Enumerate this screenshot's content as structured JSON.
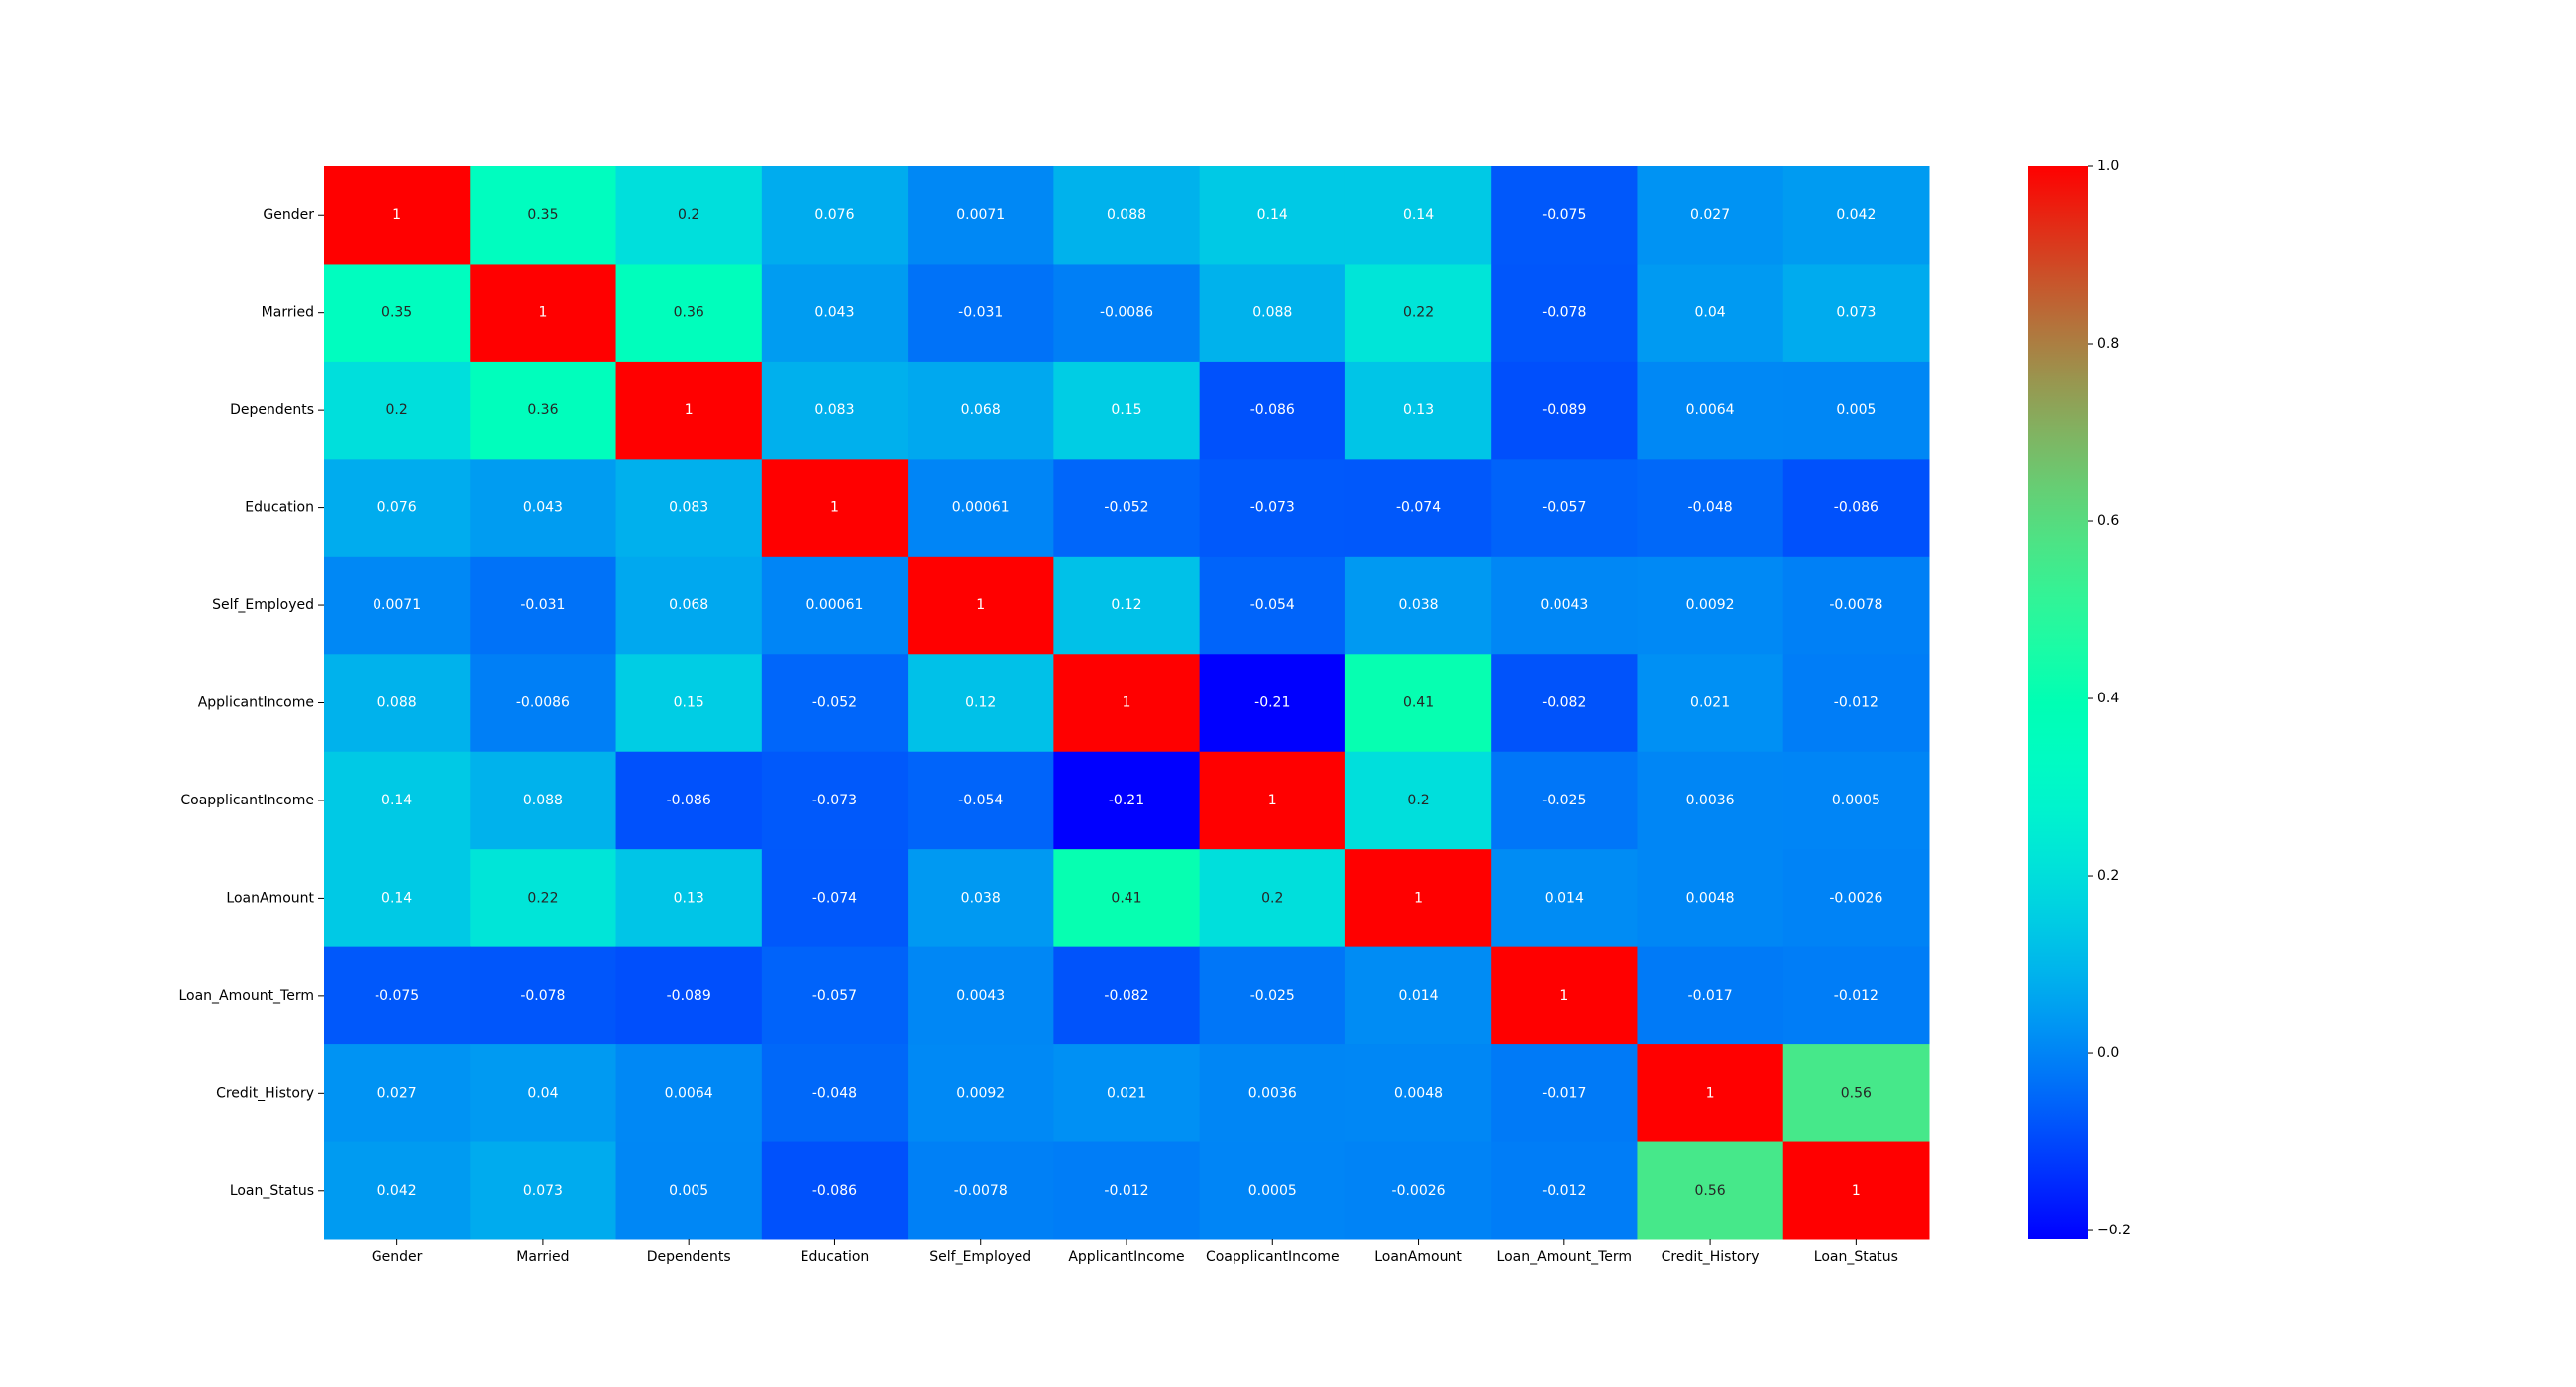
{
  "chart_data": {
    "type": "heatmap",
    "title": "",
    "xlabel": "",
    "ylabel": "",
    "colormap": "rainbow",
    "vmin": -0.21,
    "vmax": 1,
    "row_labels": [
      "Gender",
      "Married",
      "Dependents",
      "Education",
      "Self_Employed",
      "ApplicantIncome",
      "CoapplicantIncome",
      "LoanAmount",
      "Loan_Amount_Term",
      "Credit_History",
      "Loan_Status"
    ],
    "col_labels": [
      "Gender",
      "Married",
      "Dependents",
      "Education",
      "Self_Employed",
      "ApplicantIncome",
      "CoapplicantIncome",
      "LoanAmount",
      "Loan_Amount_Term",
      "Credit_History",
      "Loan_Status"
    ],
    "values": [
      [
        1,
        0.35,
        0.2,
        0.076,
        0.0071,
        0.088,
        0.14,
        0.14,
        -0.075,
        0.027,
        0.042
      ],
      [
        0.35,
        1,
        0.36,
        0.043,
        -0.031,
        -0.0086,
        0.088,
        0.22,
        -0.078,
        0.04,
        0.073
      ],
      [
        0.2,
        0.36,
        1,
        0.083,
        0.068,
        0.15,
        -0.086,
        0.13,
        -0.089,
        0.0064,
        0.005
      ],
      [
        0.076,
        0.043,
        0.083,
        1,
        0.00061,
        -0.052,
        -0.073,
        -0.074,
        -0.057,
        -0.048,
        -0.086
      ],
      [
        0.0071,
        -0.031,
        0.068,
        0.00061,
        1,
        0.12,
        -0.054,
        0.038,
        0.0043,
        0.0092,
        -0.0078
      ],
      [
        0.088,
        -0.0086,
        0.15,
        -0.052,
        0.12,
        1,
        -0.21,
        0.41,
        -0.082,
        0.021,
        -0.012
      ],
      [
        0.14,
        0.088,
        -0.086,
        -0.073,
        -0.054,
        -0.21,
        1,
        0.2,
        -0.025,
        0.0036,
        0.0005
      ],
      [
        0.14,
        0.22,
        0.13,
        -0.074,
        0.038,
        0.41,
        0.2,
        1,
        0.014,
        0.0048,
        -0.0026
      ],
      [
        -0.075,
        -0.078,
        -0.089,
        -0.057,
        0.0043,
        -0.082,
        -0.025,
        0.014,
        1,
        -0.017,
        -0.012
      ],
      [
        0.027,
        0.04,
        0.0064,
        -0.048,
        0.0092,
        0.021,
        0.0036,
        0.0048,
        -0.017,
        1,
        0.56
      ],
      [
        0.042,
        0.073,
        0.005,
        -0.086,
        -0.0078,
        -0.012,
        0.0005,
        -0.0026,
        -0.012,
        0.56,
        1
      ]
    ],
    "colorbar_ticks": [
      "1.0",
      "0.8",
      "0.6",
      "0.4",
      "0.2",
      "0.0",
      "−0.2"
    ],
    "colorbar_tick_values": [
      1.0,
      0.8,
      0.6,
      0.4,
      0.2,
      0.0,
      -0.2
    ]
  }
}
